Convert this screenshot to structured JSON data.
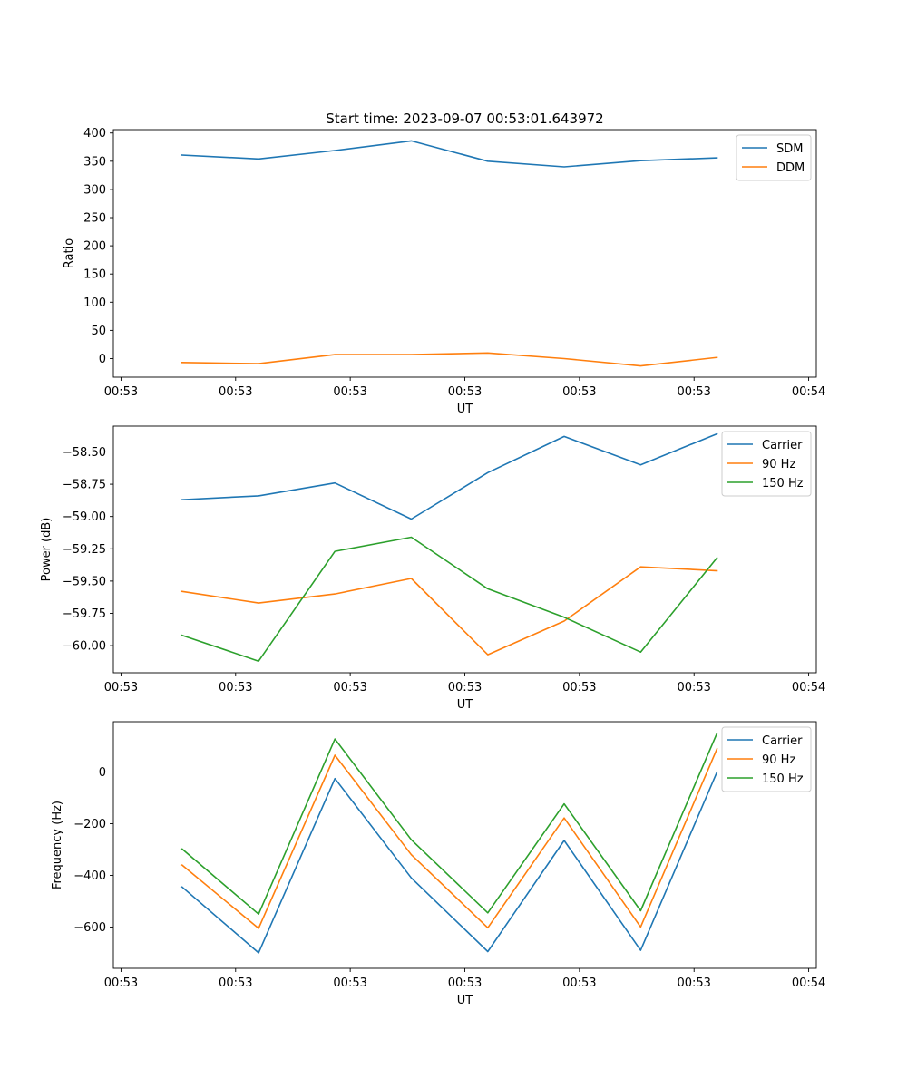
{
  "figure": {
    "title": "Start time: 2023-09-07 00:53:01.643972"
  },
  "chart_data": [
    {
      "type": "line",
      "xlabel": "UT",
      "ylabel": "Ratio",
      "xlim": [
        -0.9,
        8.3
      ],
      "ylim": [
        -33,
        406
      ],
      "x_ticks": [
        -0.8,
        0.7,
        2.2,
        3.7,
        5.2,
        6.7,
        8.2
      ],
      "x_tick_labels": [
        "00:53",
        "00:53",
        "00:53",
        "00:53",
        "00:53",
        "00:53",
        "00:54"
      ],
      "y_ticks": [
        0,
        50,
        100,
        150,
        200,
        250,
        300,
        350,
        400
      ],
      "y_tick_labels": [
        "0",
        "50",
        "100",
        "150",
        "200",
        "250",
        "300",
        "350",
        "400"
      ],
      "legend_position": "top-right",
      "x": [
        0,
        1,
        2,
        3,
        4,
        5,
        6,
        7
      ],
      "series": [
        {
          "name": "SDM",
          "color": "#1f77b4",
          "values": [
            361,
            354,
            369,
            386,
            350,
            340,
            351,
            356
          ]
        },
        {
          "name": "DDM",
          "color": "#ff7f0e",
          "values": [
            -7,
            -9,
            7,
            7,
            10,
            0,
            -13,
            2
          ]
        }
      ]
    },
    {
      "type": "line",
      "xlabel": "UT",
      "ylabel": "Power (dB)",
      "xlim": [
        -0.9,
        8.3
      ],
      "ylim": [
        -60.21,
        -58.3
      ],
      "x_ticks": [
        -0.8,
        0.7,
        2.2,
        3.7,
        5.2,
        6.7,
        8.2
      ],
      "x_tick_labels": [
        "00:53",
        "00:53",
        "00:53",
        "00:53",
        "00:53",
        "00:53",
        "00:54"
      ],
      "y_ticks": [
        -60.0,
        -59.75,
        -59.5,
        -59.25,
        -59.0,
        -58.75,
        -58.5
      ],
      "y_tick_labels": [
        "−60.00",
        "−59.75",
        "−59.50",
        "−59.25",
        "−59.00",
        "−58.75",
        "−58.50"
      ],
      "legend_position": "top-right",
      "x": [
        0,
        1,
        2,
        3,
        4,
        5,
        6,
        7
      ],
      "series": [
        {
          "name": "Carrier",
          "color": "#1f77b4",
          "values": [
            -58.87,
            -58.84,
            -58.74,
            -59.02,
            -58.66,
            -58.38,
            -58.6,
            -58.36
          ]
        },
        {
          "name": "90 Hz",
          "color": "#ff7f0e",
          "values": [
            -59.58,
            -59.67,
            -59.6,
            -59.48,
            -60.07,
            -59.81,
            -59.39,
            -59.42
          ]
        },
        {
          "name": "150 Hz",
          "color": "#2ca02c",
          "values": [
            -59.92,
            -60.12,
            -59.27,
            -59.16,
            -59.56,
            -59.78,
            -60.05,
            -59.32
          ]
        }
      ]
    },
    {
      "type": "line",
      "xlabel": "UT",
      "ylabel": "Frequency (Hz)",
      "xlim": [
        -0.9,
        8.3
      ],
      "ylim": [
        -760,
        195
      ],
      "x_ticks": [
        -0.8,
        0.7,
        2.2,
        3.7,
        5.2,
        6.7,
        8.2
      ],
      "x_tick_labels": [
        "00:53",
        "00:53",
        "00:53",
        "00:53",
        "00:53",
        "00:53",
        "00:54"
      ],
      "y_ticks": [
        -600,
        -400,
        -200,
        0
      ],
      "y_tick_labels": [
        "−600",
        "−400",
        "−200",
        "0"
      ],
      "legend_position": "top-right",
      "x": [
        0,
        1,
        2,
        3,
        4,
        5,
        6,
        7
      ],
      "series": [
        {
          "name": "Carrier",
          "color": "#1f77b4",
          "values": [
            -445,
            -700,
            -25,
            -410,
            -695,
            -265,
            -690,
            0
          ]
        },
        {
          "name": "90 Hz",
          "color": "#ff7f0e",
          "values": [
            -360,
            -605,
            65,
            -320,
            -603,
            -178,
            -600,
            90
          ]
        },
        {
          "name": "150 Hz",
          "color": "#2ca02c",
          "values": [
            -298,
            -550,
            128,
            -262,
            -545,
            -123,
            -537,
            150
          ]
        }
      ]
    }
  ]
}
